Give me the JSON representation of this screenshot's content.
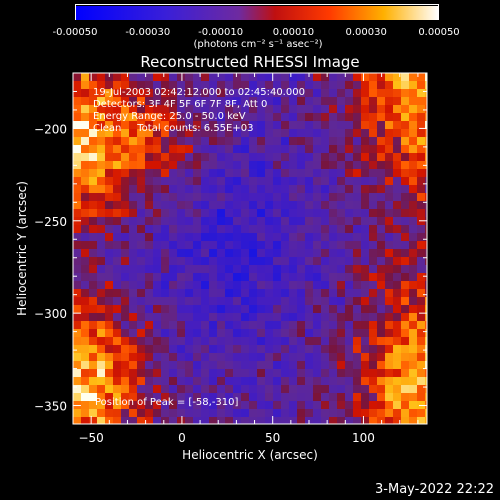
{
  "chart_data": {
    "type": "heatmap",
    "title": "Reconstructed RHESSI Image",
    "xlabel": "Heliocentric X (arcsec)",
    "ylabel": "Heliocentric Y (arcsec)",
    "xlim": [
      -60,
      135
    ],
    "ylim": [
      -360,
      -170
    ],
    "x_ticks": [
      -50,
      0,
      50,
      100
    ],
    "x_tick_labels": [
      "-50",
      "0",
      "50",
      "100"
    ],
    "y_ticks": [
      -350,
      -300,
      -250,
      -200
    ],
    "y_tick_labels": [
      "-350",
      "-300",
      "-250",
      "-200"
    ],
    "grid": false,
    "colormap": "blue-purple-red-yellow-white",
    "colorbar": {
      "range": [
        -0.0005,
        0.0005
      ],
      "ticks": [
        -0.0005,
        -0.0003,
        -0.0001,
        0.0001,
        0.0003,
        0.0005
      ],
      "tick_labels": [
        "-0.00050",
        "-0.00030",
        "-0.00010",
        "0.00010",
        "0.00030",
        "0.00050"
      ],
      "units": "(photons cm⁻² s⁻¹ asec⁻²)"
    },
    "annotations": {
      "line1": "19-Jul-2003 02:42:12.000 to 02:45:40.000",
      "line2": "Detectors: 3F 4F 5F 6F 7F 8F, Att 0",
      "line3": "Energy Range: 25.0 - 50.0 keV",
      "line4": "Clean     Total counts: 6.55E+03",
      "peak": "Position of Peak = [-58,-310]"
    },
    "peak_position": [
      -58,
      -310
    ]
  },
  "footer": {
    "timestamp": "3-May-2022 22:22"
  },
  "colors": {
    "background": "#000000",
    "foreground": "#ffffff",
    "cmap_low": "#0000ff",
    "cmap_mid": "#7a3fd0",
    "cmap_high": "#ff2000",
    "cmap_top": "#ffffff"
  }
}
